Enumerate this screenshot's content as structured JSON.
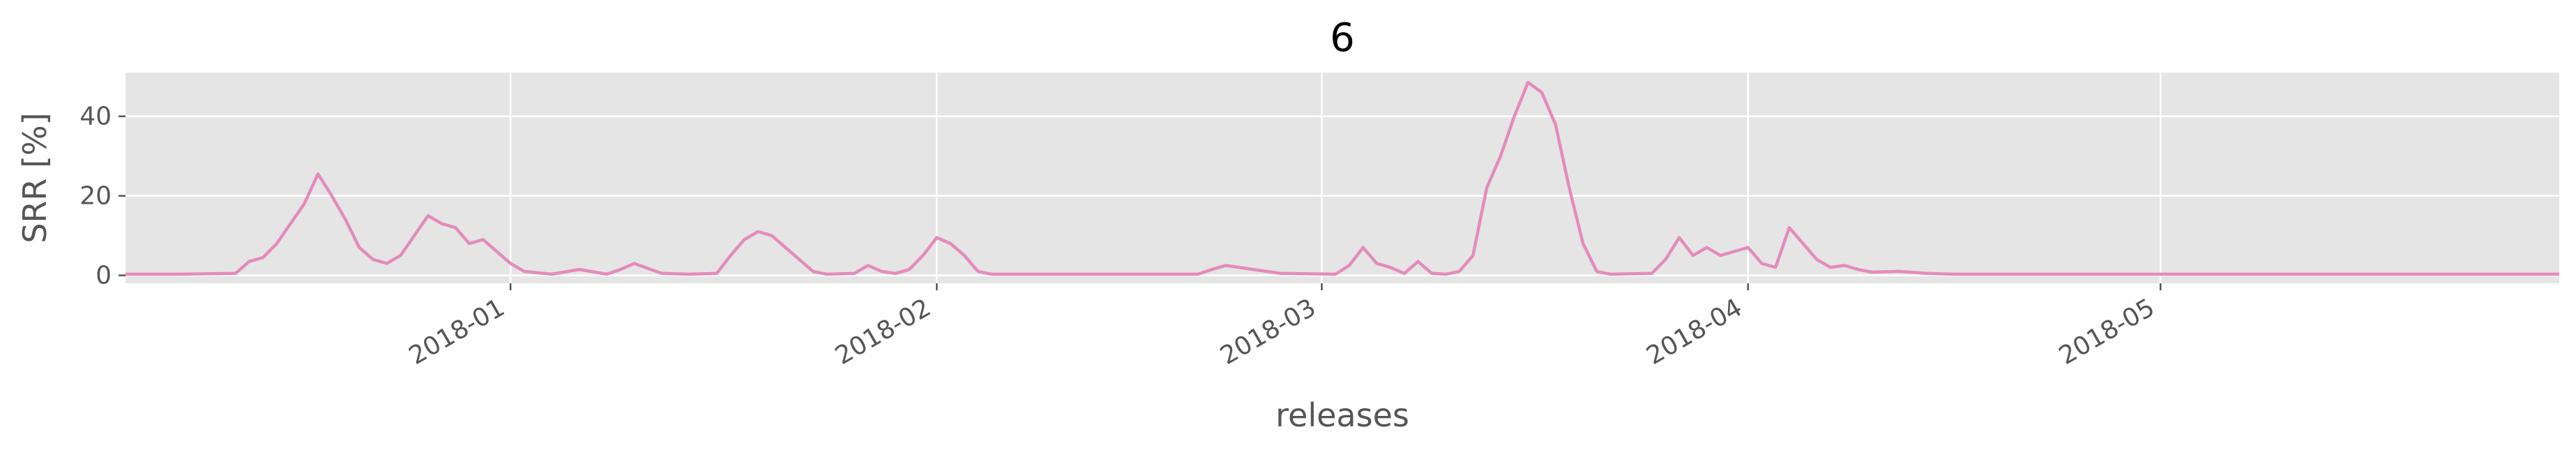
{
  "chart_data": {
    "type": "line",
    "title": "6",
    "xlabel": "releases",
    "ylabel": "SRR [%]",
    "x_ticks": [
      "2018-01",
      "2018-02",
      "2018-03",
      "2018-04",
      "2018-05"
    ],
    "y_ticks": [
      "0",
      "20",
      "40"
    ],
    "xlim": [
      "2017-12-04",
      "2018-05-30"
    ],
    "ylim": [
      -2,
      51
    ],
    "grid": true,
    "background": "#e5e5e5",
    "grid_color": "#ffffff",
    "series": [
      {
        "color": "#e48bbb",
        "points": [
          [
            "2017-12-04",
            0.3
          ],
          [
            "2017-12-08",
            0.3
          ],
          [
            "2017-12-12",
            0.5
          ],
          [
            "2017-12-13",
            3.5
          ],
          [
            "2017-12-14",
            4.5
          ],
          [
            "2017-12-15",
            8
          ],
          [
            "2017-12-16",
            13
          ],
          [
            "2017-12-17",
            18
          ],
          [
            "2017-12-18",
            25.5
          ],
          [
            "2017-12-19",
            20
          ],
          [
            "2017-12-20",
            14
          ],
          [
            "2017-12-21",
            7
          ],
          [
            "2017-12-22",
            4
          ],
          [
            "2017-12-23",
            3
          ],
          [
            "2017-12-24",
            5
          ],
          [
            "2017-12-25",
            10
          ],
          [
            "2017-12-26",
            15
          ],
          [
            "2017-12-27",
            13
          ],
          [
            "2017-12-28",
            12
          ],
          [
            "2017-12-29",
            8
          ],
          [
            "2017-12-30",
            9
          ],
          [
            "2017-12-31",
            6
          ],
          [
            "2018-01-01",
            3
          ],
          [
            "2018-01-02",
            1
          ],
          [
            "2018-01-04",
            0.3
          ],
          [
            "2018-01-06",
            1.5
          ],
          [
            "2018-01-08",
            0.3
          ],
          [
            "2018-01-09",
            1.5
          ],
          [
            "2018-01-10",
            3
          ],
          [
            "2018-01-12",
            0.5
          ],
          [
            "2018-01-14",
            0.3
          ],
          [
            "2018-01-16",
            0.5
          ],
          [
            "2018-01-17",
            5
          ],
          [
            "2018-01-18",
            9
          ],
          [
            "2018-01-19",
            11
          ],
          [
            "2018-01-20",
            10
          ],
          [
            "2018-01-21",
            7
          ],
          [
            "2018-01-22",
            4
          ],
          [
            "2018-01-23",
            1
          ],
          [
            "2018-01-24",
            0.3
          ],
          [
            "2018-01-26",
            0.5
          ],
          [
            "2018-01-27",
            2.5
          ],
          [
            "2018-01-28",
            1
          ],
          [
            "2018-01-29",
            0.5
          ],
          [
            "2018-01-30",
            1.5
          ],
          [
            "2018-01-31",
            5
          ],
          [
            "2018-02-01",
            9.5
          ],
          [
            "2018-02-02",
            8
          ],
          [
            "2018-02-03",
            5
          ],
          [
            "2018-02-04",
            1
          ],
          [
            "2018-02-05",
            0.3
          ],
          [
            "2018-02-20",
            0.3
          ],
          [
            "2018-02-21",
            1.5
          ],
          [
            "2018-02-22",
            2.5
          ],
          [
            "2018-02-23",
            2
          ],
          [
            "2018-02-24",
            1.5
          ],
          [
            "2018-02-25",
            1
          ],
          [
            "2018-02-26",
            0.5
          ],
          [
            "2018-03-02",
            0.3
          ],
          [
            "2018-03-03",
            2.5
          ],
          [
            "2018-03-04",
            7
          ],
          [
            "2018-03-05",
            3
          ],
          [
            "2018-03-06",
            2
          ],
          [
            "2018-03-07",
            0.5
          ],
          [
            "2018-03-08",
            3.5
          ],
          [
            "2018-03-09",
            0.5
          ],
          [
            "2018-03-10",
            0.3
          ],
          [
            "2018-03-11",
            1
          ],
          [
            "2018-03-12",
            5
          ],
          [
            "2018-03-13",
            22
          ],
          [
            "2018-03-14",
            30
          ],
          [
            "2018-03-15",
            40
          ],
          [
            "2018-03-16",
            48.5
          ],
          [
            "2018-03-17",
            46
          ],
          [
            "2018-03-18",
            38
          ],
          [
            "2018-03-19",
            22
          ],
          [
            "2018-03-20",
            8
          ],
          [
            "2018-03-21",
            1
          ],
          [
            "2018-03-22",
            0.3
          ],
          [
            "2018-03-25",
            0.5
          ],
          [
            "2018-03-26",
            4
          ],
          [
            "2018-03-27",
            9.5
          ],
          [
            "2018-03-28",
            5
          ],
          [
            "2018-03-29",
            7
          ],
          [
            "2018-03-30",
            5
          ],
          [
            "2018-03-31",
            6
          ],
          [
            "2018-04-01",
            7
          ],
          [
            "2018-04-02",
            3
          ],
          [
            "2018-04-03",
            2
          ],
          [
            "2018-04-04",
            12
          ],
          [
            "2018-04-05",
            8
          ],
          [
            "2018-04-06",
            4
          ],
          [
            "2018-04-07",
            2
          ],
          [
            "2018-04-08",
            2.5
          ],
          [
            "2018-04-09",
            1.5
          ],
          [
            "2018-04-10",
            0.8
          ],
          [
            "2018-04-12",
            1
          ],
          [
            "2018-04-14",
            0.5
          ],
          [
            "2018-04-16",
            0.3
          ],
          [
            "2018-04-18",
            0.3
          ],
          [
            "2018-04-20",
            0.3
          ],
          [
            "2018-04-22",
            0.3
          ],
          [
            "2018-04-24",
            0.3
          ],
          [
            "2018-04-26",
            0.3
          ],
          [
            "2018-04-28",
            0.3
          ],
          [
            "2018-04-30",
            0.3
          ],
          [
            "2018-05-02",
            0.3
          ],
          [
            "2018-05-04",
            0.3
          ],
          [
            "2018-05-06",
            0.3
          ],
          [
            "2018-05-08",
            0.3
          ],
          [
            "2018-05-10",
            0.3
          ],
          [
            "2018-05-12",
            0.3
          ],
          [
            "2018-05-14",
            0.3
          ],
          [
            "2018-05-16",
            0.3
          ],
          [
            "2018-05-18",
            0.3
          ],
          [
            "2018-05-20",
            0.3
          ],
          [
            "2018-05-22",
            0.3
          ],
          [
            "2018-05-24",
            0.3
          ],
          [
            "2018-05-26",
            0.3
          ],
          [
            "2018-05-28",
            0.3
          ],
          [
            "2018-05-30",
            0.3
          ]
        ]
      }
    ]
  }
}
